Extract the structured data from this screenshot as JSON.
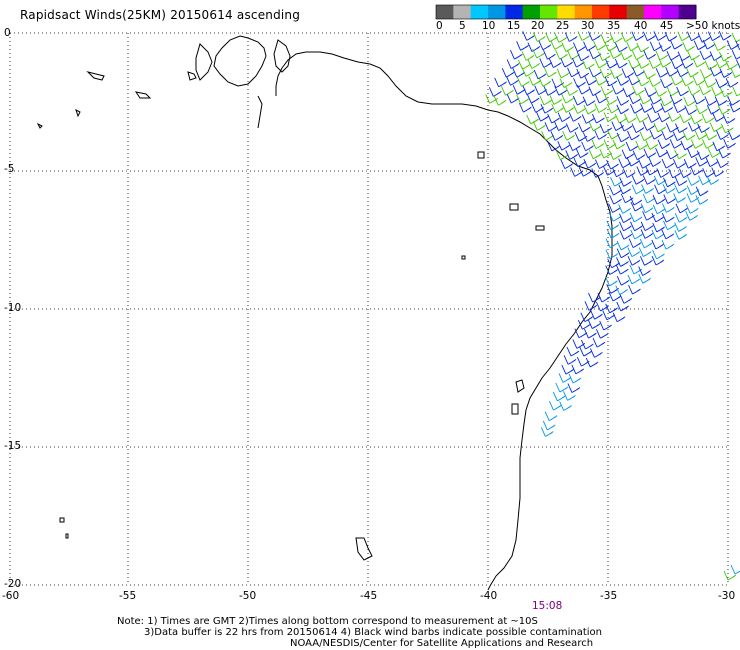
{
  "title": "Rapidsact Winds(25KM) 20150614 ascending",
  "legend": {
    "colors": [
      "#5a5a5a",
      "#b4b4b4",
      "#00c8ff",
      "#0096e6",
      "#0028e6",
      "#00a000",
      "#64e600",
      "#ffdc00",
      "#ff9600",
      "#ff3c00",
      "#e60000",
      "#8c5a28",
      "#ff00ff",
      "#b400ff",
      "#500090"
    ],
    "labels": [
      "0",
      "5",
      "10",
      "15",
      "20",
      "25",
      "30",
      "35",
      "40",
      "45",
      ">50 knots"
    ]
  },
  "axes": {
    "lon_ticks": [
      "-60",
      "-55",
      "-50",
      "-45",
      "-40",
      "-35",
      "-30"
    ],
    "lat_ticks": [
      "0",
      "-5",
      "-10",
      "-15",
      "-20"
    ]
  },
  "time_label": "15:08",
  "time_color": "#800080",
  "notes": [
    "Note: 1) Times are GMT 2)Times along bottom correspond to measurement at ~10S",
    "3)Data buffer is 22 hrs from 20150614 4) Black wind barbs indicate possible contamination",
    "NOAA/NESDIS/Center for Satellite Applications and Research"
  ],
  "colors": {
    "coast": "#000000",
    "grid": "#000000",
    "wind_blue": "#0028e6",
    "wind_green": "#3cc800",
    "wind_cyan": "#0096e6"
  }
}
